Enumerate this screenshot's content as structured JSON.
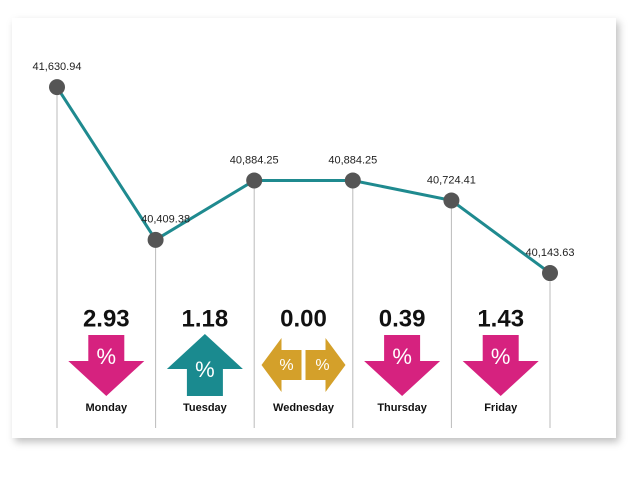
{
  "chart_data": {
    "type": "line",
    "categories": [
      null,
      null,
      null,
      null,
      null,
      null
    ],
    "values": [
      41630.94,
      40409.38,
      40884.25,
      40884.25,
      40724.41,
      40143.63
    ],
    "value_labels": [
      "41,630.94",
      "40,409.38",
      "40,884.25",
      "40,884.25",
      "40,724.41",
      "40,143.63"
    ],
    "color": "#1f8a8f",
    "marker_color": "#555555",
    "ylim": [
      40000,
      41800
    ],
    "changes": {
      "days": [
        "Monday",
        "Tuesday",
        "Wednesday",
        "Thursday",
        "Friday"
      ],
      "values": [
        2.93,
        1.18,
        0.0,
        0.39,
        1.43
      ],
      "value_labels": [
        "2.93",
        "1.18",
        "0.00",
        "0.39",
        "1.43"
      ],
      "directions": [
        "down",
        "up",
        "flat",
        "down",
        "down"
      ],
      "symbol": "%",
      "colors": {
        "down": "#d6227f",
        "up": "#1a8a8f",
        "flat": "#d4a02a"
      }
    }
  }
}
